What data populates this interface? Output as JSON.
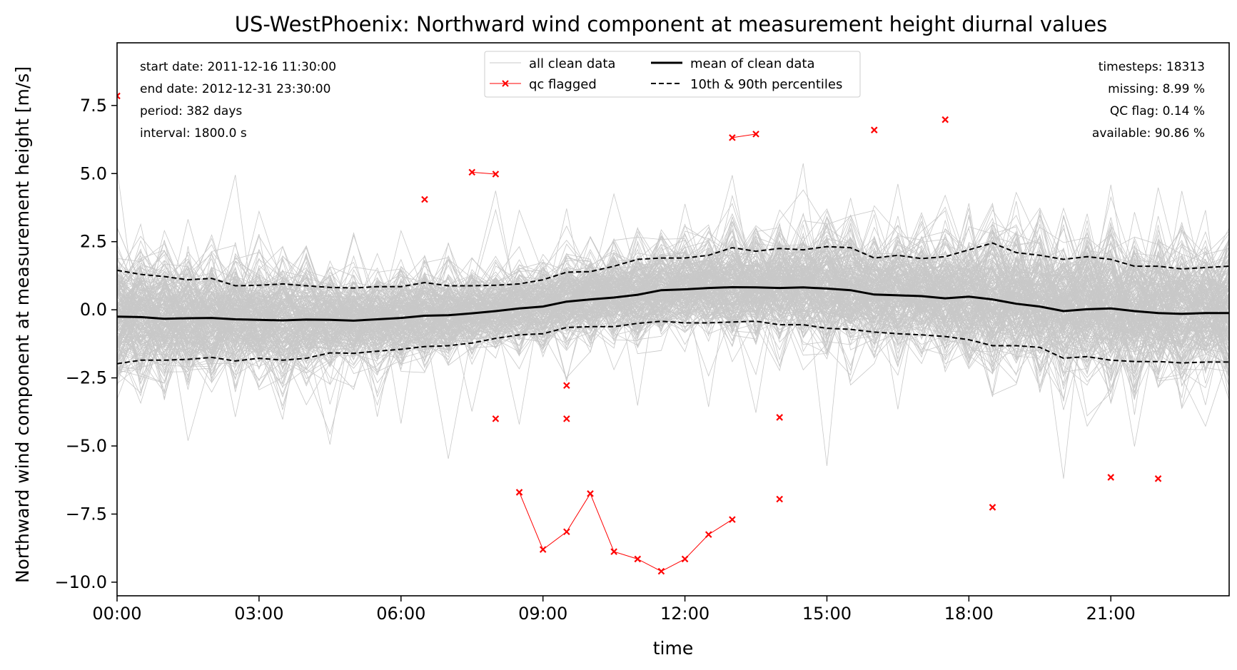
{
  "chart_data": {
    "type": "line",
    "title": "US-WestPhoenix: Northward wind component at measurement height diurnal values",
    "xlabel": "time",
    "ylabel": "Northward wind component at measurement height [m/s]",
    "xlim": [
      0,
      23.5
    ],
    "ylim": [
      -10.5,
      9.8
    ],
    "x_ticks": [
      {
        "value": 0,
        "label": "00:00"
      },
      {
        "value": 3,
        "label": "03:00"
      },
      {
        "value": 6,
        "label": "06:00"
      },
      {
        "value": 9,
        "label": "09:00"
      },
      {
        "value": 12,
        "label": "12:00"
      },
      {
        "value": 15,
        "label": "15:00"
      },
      {
        "value": 18,
        "label": "18:00"
      },
      {
        "value": 21,
        "label": "21:00"
      }
    ],
    "y_ticks": [
      {
        "value": 7.5,
        "label": "7.5"
      },
      {
        "value": 5.0,
        "label": "5.0"
      },
      {
        "value": 2.5,
        "label": "2.5"
      },
      {
        "value": 0.0,
        "label": "0.0"
      },
      {
        "value": -2.5,
        "label": "−2.5"
      },
      {
        "value": -5.0,
        "label": "−5.0"
      },
      {
        "value": -7.5,
        "label": "−7.5"
      },
      {
        "value": -10.0,
        "label": "−10.0"
      }
    ],
    "grid": false,
    "legend": {
      "placement": "top-center",
      "entries": [
        {
          "label": "all clean data",
          "style": "thin-gray"
        },
        {
          "label": "mean of clean data",
          "style": "solid-black"
        },
        {
          "label": "qc flagged",
          "style": "red-x"
        },
        {
          "label": "10th & 90th percentiles",
          "style": "dashed-black"
        }
      ]
    },
    "info_left": [
      "start date: 2011-12-16 11:30:00",
      "end date: 2012-12-31 23:30:00",
      "period: 382 days",
      "interval: 1800.0 s"
    ],
    "info_right": [
      "timesteps: 18313",
      "missing: 8.99 %",
      "QC flag: 0.14 %",
      "available: 90.86 %"
    ],
    "colors": {
      "clean_data": "#c8c8c8",
      "mean": "#000000",
      "percentiles": "#000000",
      "qc_flagged": "#ff0000"
    },
    "x": [
      0,
      0.5,
      1,
      1.5,
      2,
      2.5,
      3,
      3.5,
      4,
      4.5,
      5,
      5.5,
      6,
      6.5,
      7,
      7.5,
      8,
      8.5,
      9,
      9.5,
      10,
      10.5,
      11,
      11.5,
      12,
      12.5,
      13,
      13.5,
      14,
      14.5,
      15,
      15.5,
      16,
      16.5,
      17,
      17.5,
      18,
      18.5,
      19,
      19.5,
      20,
      20.5,
      21,
      21.5,
      22,
      22.5,
      23,
      23.5
    ],
    "series": [
      {
        "name": "mean of clean data",
        "values": [
          -0.25,
          -0.27,
          -0.33,
          -0.31,
          -0.3,
          -0.35,
          -0.37,
          -0.39,
          -0.36,
          -0.37,
          -0.4,
          -0.35,
          -0.3,
          -0.22,
          -0.2,
          -0.13,
          -0.05,
          0.05,
          0.12,
          0.3,
          0.38,
          0.45,
          0.55,
          0.72,
          0.75,
          0.8,
          0.83,
          0.82,
          0.8,
          0.82,
          0.78,
          0.72,
          0.56,
          0.53,
          0.5,
          0.42,
          0.48,
          0.38,
          0.22,
          0.12,
          -0.05,
          0.02,
          0.05,
          -0.05,
          -0.12,
          -0.15,
          -0.12,
          -0.12
        ]
      },
      {
        "name": "10th & 90th percentiles",
        "role": "p90",
        "values": [
          1.45,
          1.3,
          1.22,
          1.1,
          1.15,
          0.88,
          0.9,
          0.95,
          0.88,
          0.82,
          0.8,
          0.85,
          0.85,
          1.0,
          0.88,
          0.88,
          0.9,
          0.95,
          1.1,
          1.38,
          1.4,
          1.6,
          1.85,
          1.9,
          1.9,
          2.0,
          2.28,
          2.15,
          2.25,
          2.2,
          2.32,
          2.28,
          1.9,
          2.0,
          1.88,
          1.95,
          2.2,
          2.45,
          2.1,
          2.0,
          1.85,
          1.95,
          1.85,
          1.6,
          1.6,
          1.5,
          1.55,
          1.6
        ]
      },
      {
        "name": "10th & 90th percentiles",
        "role": "p10",
        "values": [
          -1.98,
          -1.85,
          -1.85,
          -1.82,
          -1.75,
          -1.88,
          -1.78,
          -1.85,
          -1.78,
          -1.58,
          -1.6,
          -1.52,
          -1.45,
          -1.35,
          -1.32,
          -1.22,
          -1.05,
          -0.92,
          -0.88,
          -0.65,
          -0.62,
          -0.62,
          -0.5,
          -0.42,
          -0.48,
          -0.48,
          -0.45,
          -0.42,
          -0.55,
          -0.55,
          -0.68,
          -0.72,
          -0.82,
          -0.88,
          -0.92,
          -0.98,
          -1.1,
          -1.32,
          -1.32,
          -1.38,
          -1.78,
          -1.72,
          -1.85,
          -1.9,
          -1.9,
          -1.95,
          -1.92,
          -1.92
        ]
      }
    ],
    "qc_flagged_points": [
      {
        "x": 0,
        "y": 7.85
      },
      {
        "x": 6.5,
        "y": 4.05
      },
      {
        "x": 7.5,
        "y": 5.05
      },
      {
        "x": 8.0,
        "y": 4.98
      },
      {
        "x": 8.0,
        "y": -4.0
      },
      {
        "x": 8.5,
        "y": -6.7
      },
      {
        "x": 9.0,
        "y": -8.8
      },
      {
        "x": 9.5,
        "y": -8.15
      },
      {
        "x": 9.5,
        "y": -2.78
      },
      {
        "x": 9.5,
        "y": -4.0
      },
      {
        "x": 10.0,
        "y": -6.75
      },
      {
        "x": 10.5,
        "y": -8.88
      },
      {
        "x": 11.0,
        "y": -9.15
      },
      {
        "x": 11.5,
        "y": -9.6
      },
      {
        "x": 12.0,
        "y": -9.15
      },
      {
        "x": 12.5,
        "y": -8.25
      },
      {
        "x": 13.0,
        "y": -7.7
      },
      {
        "x": 13.0,
        "y": 6.32
      },
      {
        "x": 13.5,
        "y": 6.45
      },
      {
        "x": 14.0,
        "y": -3.95
      },
      {
        "x": 14.0,
        "y": -6.95
      },
      {
        "x": 16.0,
        "y": 6.6
      },
      {
        "x": 17.5,
        "y": 6.98
      },
      {
        "x": 18.5,
        "y": -7.25
      },
      {
        "x": 21.0,
        "y": -6.15
      },
      {
        "x": 22.0,
        "y": -6.2
      }
    ],
    "qc_flagged_segments": [
      [
        [
          7.5,
          5.05
        ],
        [
          8.0,
          4.98
        ]
      ],
      [
        [
          8.5,
          -6.7
        ],
        [
          9.0,
          -8.8
        ],
        [
          9.5,
          -8.15
        ],
        [
          10.0,
          -6.75
        ],
        [
          10.5,
          -8.88
        ],
        [
          11.0,
          -9.15
        ],
        [
          11.5,
          -9.6
        ],
        [
          12.0,
          -9.15
        ],
        [
          12.5,
          -8.25
        ],
        [
          13.0,
          -7.7
        ]
      ],
      [
        [
          13.0,
          6.32
        ],
        [
          13.5,
          6.45
        ]
      ]
    ]
  }
}
